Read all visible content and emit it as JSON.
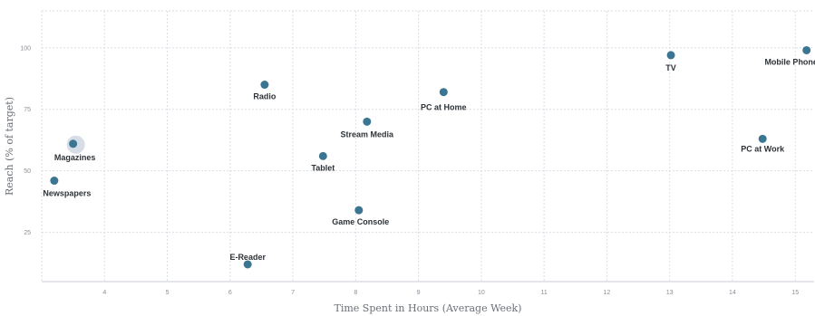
{
  "chart_data": {
    "type": "scatter",
    "title": "",
    "xlabel": "Time Spent in Hours (Average Week)",
    "ylabel": "Reach (% of target)",
    "xlim": [
      3,
      15.3
    ],
    "ylim": [
      5,
      115
    ],
    "x_ticks": [
      4,
      5,
      6,
      7,
      8,
      9,
      10,
      11,
      12,
      13,
      14,
      15
    ],
    "y_ticks": [
      25,
      50,
      75,
      100
    ],
    "grid": true,
    "legend": "none",
    "colors": {
      "point": "#3b7591",
      "highlight_halo": "#d6dde6",
      "grid": "#d9dee4"
    },
    "points": [
      {
        "name": "Magazines",
        "x": 3.5,
        "y": 61,
        "highlight": true
      },
      {
        "name": "Newspapers",
        "x": 3.2,
        "y": 46
      },
      {
        "name": "Radio",
        "x": 6.55,
        "y": 85
      },
      {
        "name": "Tablet",
        "x": 7.48,
        "y": 56
      },
      {
        "name": "Stream Media",
        "x": 8.18,
        "y": 70
      },
      {
        "name": "Game Console",
        "x": 8.05,
        "y": 34
      },
      {
        "name": "E-Reader",
        "x": 6.28,
        "y": 12
      },
      {
        "name": "PC at Home",
        "x": 9.4,
        "y": 82
      },
      {
        "name": "TV",
        "x": 13.02,
        "y": 97
      },
      {
        "name": "PC at Work",
        "x": 14.48,
        "y": 63
      },
      {
        "name": "Mobile Phone",
        "x": 15.18,
        "y": 99
      }
    ]
  }
}
